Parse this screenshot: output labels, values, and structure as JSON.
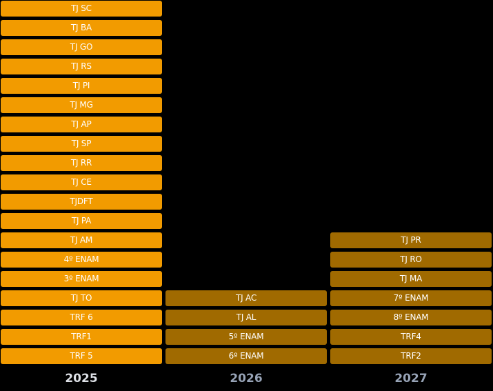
{
  "columns": [
    {
      "year": "2025",
      "items": [
        "TJ SC",
        "TJ BA",
        "TJ GO",
        "TJ RS",
        "TJ PI",
        "TJ MG",
        "TJ AP",
        "TJ SP",
        "TJ RR",
        "TJ CE",
        "TJDFT",
        "TJ PA",
        "TJ AM",
        "4º ENAM",
        "3º ENAM",
        "TJ TO",
        "TRF 6",
        "TRF1",
        "TRF 5"
      ]
    },
    {
      "year": "2026",
      "items": [
        "TJ AC",
        "TJ AL",
        "5º ENAM",
        "6º ENAM"
      ]
    },
    {
      "year": "2027",
      "items": [
        "TJ PR",
        "TJ RO",
        "TJ MA",
        "7º ENAM",
        "8º ENAM",
        "TRF4",
        "TRF2"
      ]
    }
  ],
  "colors": {
    "active": "#f29b00",
    "muted": "#a06a00",
    "year_active": "#dde0e6",
    "year_muted": "#97a3b6",
    "background": "#000000"
  }
}
